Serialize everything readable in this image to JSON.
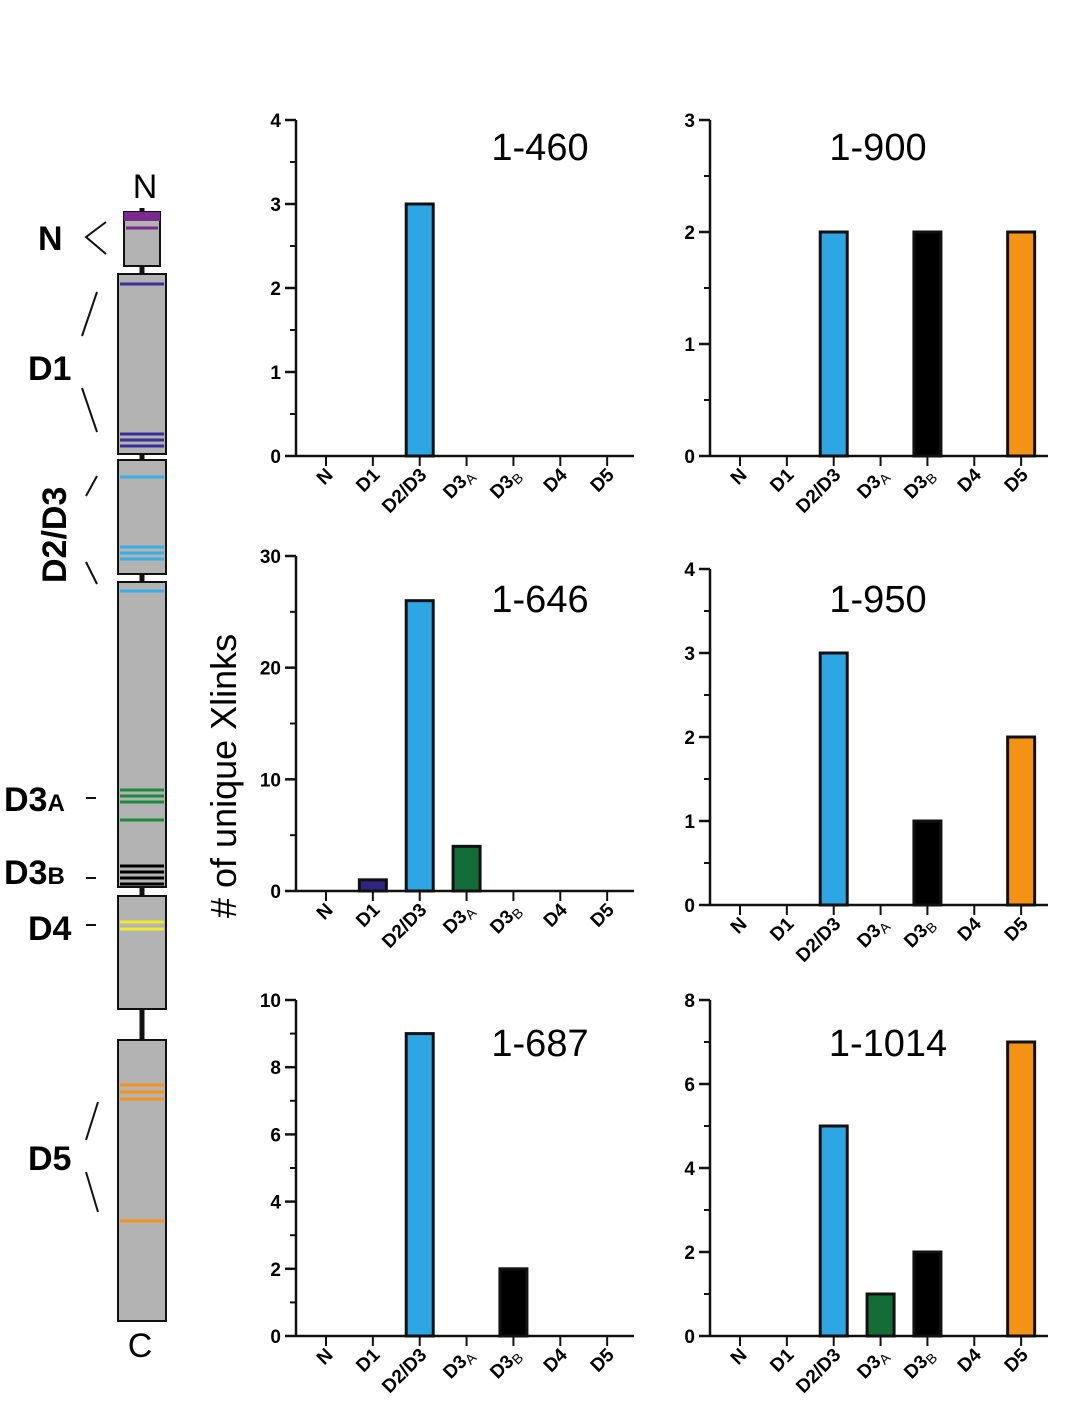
{
  "colors": {
    "N": "#ffffff",
    "D1": "#2e2583",
    "D2/D3": "#2fa6e4",
    "D3A": "#146c37",
    "D3B": "#000000",
    "D4": "#ffffff",
    "D5": "#f39214",
    "segment_fill": "#b3b3b3",
    "axis": "#111111",
    "band_N": "#7a2a8c",
    "band_D1": "#3a2f96",
    "band_D2D3": "#3aaee6",
    "band_D3A": "#1c8a3c",
    "band_D3B": "#000000",
    "band_D4": "#f2e92a",
    "band_D5": "#f39214"
  },
  "domain_map": {
    "n_terminus": "N",
    "c_terminus": "C",
    "labels": {
      "N": "N",
      "D1": "D1",
      "D2D3": "D2/D3",
      "D3A_main": "D3",
      "D3A_sub": "A",
      "D3B_main": "D3",
      "D3B_sub": "B",
      "D4": "D4",
      "D5": "D5"
    }
  },
  "chart_data": [
    {
      "type": "bar",
      "title": "1-460",
      "categories": [
        "N",
        "D1",
        "D2/D3",
        "D3A",
        "D3B",
        "D4",
        "D5"
      ],
      "values": [
        0,
        0,
        3,
        0,
        0,
        0,
        0
      ],
      "ylim": [
        0,
        4
      ],
      "yticks": [
        0,
        1,
        2,
        3,
        4
      ],
      "minor_step": 0.5,
      "xlabel": "",
      "ylabel": "# of unique Xlinks"
    },
    {
      "type": "bar",
      "title": "1-900",
      "categories": [
        "N",
        "D1",
        "D2/D3",
        "D3A",
        "D3B",
        "D4",
        "D5"
      ],
      "values": [
        0,
        0,
        2,
        0,
        2,
        0,
        2
      ],
      "ylim": [
        0,
        3
      ],
      "yticks": [
        0,
        1,
        2,
        3
      ],
      "minor_step": 0.5,
      "xlabel": "",
      "ylabel": "# of unique Xlinks"
    },
    {
      "type": "bar",
      "title": "1-646",
      "categories": [
        "N",
        "D1",
        "D2/D3",
        "D3A",
        "D3B",
        "D4",
        "D5"
      ],
      "values": [
        0,
        1,
        26,
        4,
        0,
        0,
        0
      ],
      "ylim": [
        0,
        30
      ],
      "yticks": [
        0,
        10,
        20,
        30
      ],
      "minor_step": 5,
      "xlabel": "",
      "ylabel": "# of unique Xlinks"
    },
    {
      "type": "bar",
      "title": "1-950",
      "categories": [
        "N",
        "D1",
        "D2/D3",
        "D3A",
        "D3B",
        "D4",
        "D5"
      ],
      "values": [
        0,
        0,
        3,
        0,
        1,
        0,
        2
      ],
      "ylim": [
        0,
        4
      ],
      "yticks": [
        0,
        1,
        2,
        3,
        4
      ],
      "minor_step": 0.5,
      "xlabel": "",
      "ylabel": "# of unique Xlinks"
    },
    {
      "type": "bar",
      "title": "1-687",
      "categories": [
        "N",
        "D1",
        "D2/D3",
        "D3A",
        "D3B",
        "D4",
        "D5"
      ],
      "values": [
        0,
        0,
        9,
        0,
        2,
        0,
        0
      ],
      "ylim": [
        0,
        10
      ],
      "yticks": [
        0,
        2,
        4,
        6,
        8,
        10
      ],
      "minor_step": 1,
      "xlabel": "",
      "ylabel": "# of unique Xlinks"
    },
    {
      "type": "bar",
      "title": "1-1014",
      "categories": [
        "N",
        "D1",
        "D2/D3",
        "D3A",
        "D3B",
        "D4",
        "D5"
      ],
      "values": [
        0,
        0,
        5,
        1,
        2,
        0,
        7
      ],
      "ylim": [
        0,
        8
      ],
      "yticks": [
        0,
        2,
        4,
        6,
        8
      ],
      "minor_step": 1,
      "xlabel": "",
      "ylabel": "# of unique Xlinks"
    }
  ],
  "shared_ylabel": "# of unique Xlinks"
}
